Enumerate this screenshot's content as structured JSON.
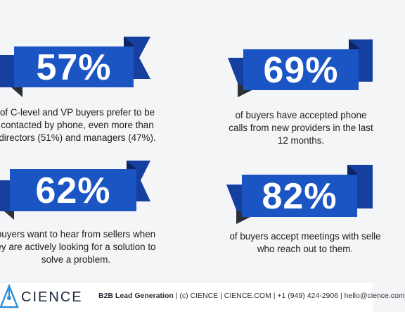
{
  "stats": [
    {
      "value": "57%",
      "lines": [
        "of C-level and VP buyers prefer to be",
        "contacted by phone, even more than",
        "directors (51%) and managers (47%)."
      ]
    },
    {
      "value": "69%",
      "lines": [
        "of buyers have accepted phone",
        "calls from new providers in the last",
        "12 months."
      ]
    },
    {
      "value": "62%",
      "lines": [
        "buyers want to hear from sellers when",
        "ey are actively looking for a solution to",
        "solve a problem."
      ]
    },
    {
      "value": "82%",
      "lines": [
        "of buyers accept meetings with selle",
        "who reach out to them."
      ]
    }
  ],
  "footer": {
    "brand": "CIENCE",
    "tagline": "B2B Lead Generation",
    "details": " | (c) CIENCE | CIENCE.COM | +1 (949) 424-2906 | hello@cience.com"
  },
  "colors": {
    "ribbon_front": "#1b55c4",
    "ribbon_back": "#1640a0",
    "ribbon_fold": "#0b2463",
    "shadow": "#2d2f36"
  }
}
